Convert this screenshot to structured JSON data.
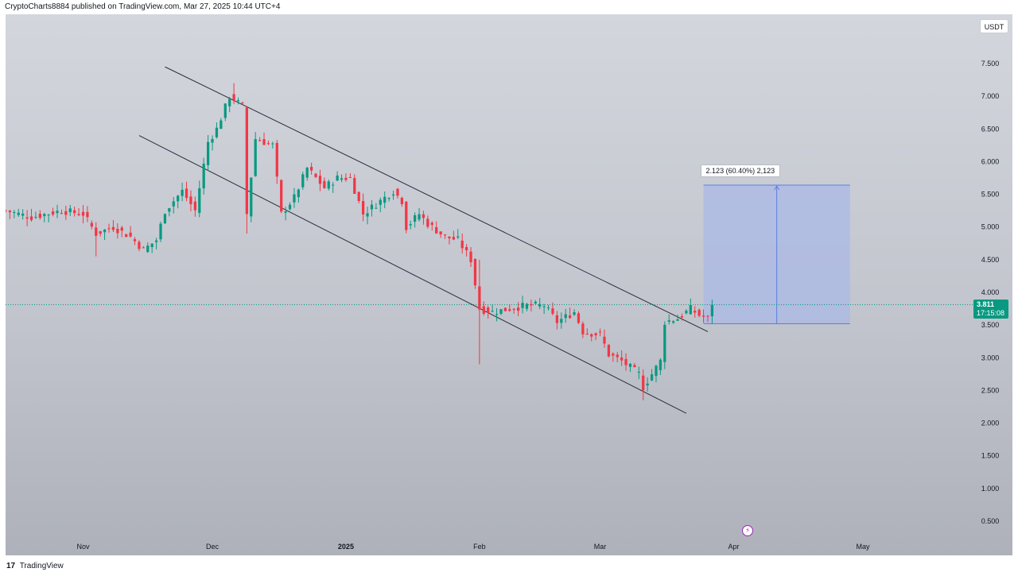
{
  "header": {
    "attribution": "CryptoCharts8884 published on TradingView.com, Mar 27, 2025 10:44 UTC+4"
  },
  "footer": {
    "logo": "17",
    "brand": "TradingView"
  },
  "currency_badge": "USDT",
  "measure_label": "2.123 (60.40%) 2,123",
  "last_price": {
    "value": "3.811",
    "countdown": "17:15:08"
  },
  "colors": {
    "up": "#089981",
    "down": "#f23645",
    "measure_fill": "#aab8e6",
    "measure_stroke": "#5b7fe0",
    "channel": "#2a2e39",
    "price_line": "#089981",
    "alert_icon": "#9c27b0"
  },
  "icons": [
    "tradingview-logo-icon",
    "flash-alert-icon",
    "arrow-up-icon"
  ],
  "chart_data": {
    "type": "candlestick",
    "yaxis": {
      "side": "right",
      "range": [
        0.25,
        7.95
      ],
      "ticks": [
        "7.500",
        "7.000",
        "6.500",
        "6.000",
        "5.500",
        "5.000",
        "4.500",
        "4.000",
        "3.500",
        "3.000",
        "2.500",
        "2.000",
        "1.500",
        "1.000",
        "0.500"
      ]
    },
    "xaxis": {
      "range": [
        "2024-10-14",
        "2025-05-25"
      ],
      "ticks": [
        {
          "label": "Nov",
          "date": "2024-11-01"
        },
        {
          "label": "Dec",
          "date": "2024-12-01"
        },
        {
          "label": "2025",
          "date": "2025-01-01"
        },
        {
          "label": "Feb",
          "date": "2025-02-01"
        },
        {
          "label": "Mar",
          "date": "2025-03-01"
        },
        {
          "label": "Apr",
          "date": "2025-04-01"
        },
        {
          "label": "May",
          "date": "2025-05-01"
        }
      ]
    },
    "current_price": 3.811,
    "close_path": [
      [
        "2024-10-14",
        5.25
      ],
      [
        "2024-10-20",
        5.15
      ],
      [
        "2024-10-27",
        5.25
      ],
      [
        "2024-11-01",
        5.2
      ],
      [
        "2024-11-04",
        4.9
      ],
      [
        "2024-11-08",
        5.0
      ],
      [
        "2024-11-12",
        4.85
      ],
      [
        "2024-11-15",
        4.65
      ],
      [
        "2024-11-18",
        4.8
      ],
      [
        "2024-11-20",
        5.25
      ],
      [
        "2024-11-24",
        5.55
      ],
      [
        "2024-11-27",
        5.25
      ],
      [
        "2024-11-30",
        6.3
      ],
      [
        "2024-12-02",
        6.5
      ],
      [
        "2024-12-05",
        7.0
      ],
      [
        "2024-12-08",
        6.85
      ],
      [
        "2024-12-09",
        5.2
      ],
      [
        "2024-12-11",
        6.35
      ],
      [
        "2024-12-13",
        6.3
      ],
      [
        "2024-12-15",
        6.25
      ],
      [
        "2024-12-17",
        5.2
      ],
      [
        "2024-12-20",
        5.45
      ],
      [
        "2024-12-23",
        5.9
      ],
      [
        "2024-12-27",
        5.6
      ],
      [
        "2024-12-30",
        5.75
      ],
      [
        "2025-01-02",
        5.75
      ],
      [
        "2025-01-05",
        5.2
      ],
      [
        "2025-01-08",
        5.35
      ],
      [
        "2025-01-12",
        5.55
      ],
      [
        "2025-01-14",
        5.4
      ],
      [
        "2025-01-15",
        5.0
      ],
      [
        "2025-01-18",
        5.2
      ],
      [
        "2025-01-20",
        5.05
      ],
      [
        "2025-01-24",
        4.85
      ],
      [
        "2025-01-27",
        4.8
      ],
      [
        "2025-01-30",
        4.5
      ],
      [
        "2025-02-01",
        3.75
      ],
      [
        "2025-02-04",
        3.7
      ],
      [
        "2025-02-08",
        3.75
      ],
      [
        "2025-02-12",
        3.8
      ],
      [
        "2025-02-16",
        3.8
      ],
      [
        "2025-02-19",
        3.55
      ],
      [
        "2025-02-23",
        3.7
      ],
      [
        "2025-02-25",
        3.4
      ],
      [
        "2025-03-01",
        3.35
      ],
      [
        "2025-03-03",
        3.05
      ],
      [
        "2025-03-06",
        2.95
      ],
      [
        "2025-03-10",
        2.75
      ],
      [
        "2025-03-11",
        2.55
      ],
      [
        "2025-03-13",
        2.75
      ],
      [
        "2025-03-15",
        2.95
      ],
      [
        "2025-03-16",
        3.55
      ],
      [
        "2025-03-19",
        3.6
      ],
      [
        "2025-03-22",
        3.75
      ],
      [
        "2025-03-24",
        3.65
      ],
      [
        "2025-03-26",
        3.6
      ],
      [
        "2025-03-27",
        3.811
      ]
    ],
    "channel": {
      "upper": [
        [
          "2024-11-20",
          7.45
        ],
        [
          "2025-03-26",
          3.4
        ]
      ],
      "lower": [
        [
          "2024-11-14",
          6.4
        ],
        [
          "2025-03-21",
          2.15
        ]
      ]
    },
    "measure": {
      "from_date": "2025-03-25",
      "to_date": "2025-04-28",
      "low": 3.52,
      "high": 5.64,
      "change": "2.123",
      "percent": "60.40%",
      "ticks": "2,123"
    }
  }
}
